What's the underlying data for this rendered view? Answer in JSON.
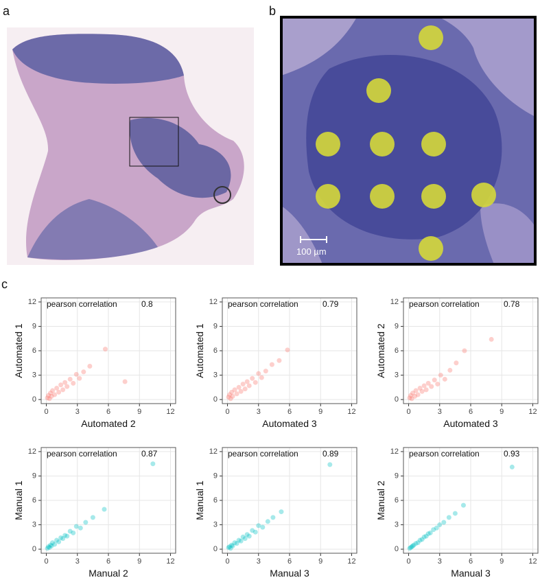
{
  "panel_labels": {
    "a": "a",
    "b": "b",
    "c": "c"
  },
  "scale_bar": "100 µm",
  "chart_data": [
    {
      "type": "scatter",
      "annotation": "pearson correlation",
      "correlation": 0.8,
      "xlabel": "Automated 2",
      "ylabel": "Automated 1",
      "color": "#f8766d",
      "x": [
        0.1,
        0.2,
        0.3,
        0.4,
        0.5,
        0.6,
        0.8,
        1.0,
        1.2,
        1.4,
        1.6,
        1.8,
        2.0,
        2.3,
        2.6,
        2.9,
        3.2,
        3.6,
        4.2,
        5.7,
        7.6
      ],
      "y": [
        0.2,
        0.5,
        0.1,
        0.8,
        0.4,
        1.1,
        0.6,
        1.4,
        0.9,
        1.8,
        1.2,
        2.1,
        1.6,
        2.5,
        2.0,
        3.1,
        2.6,
        3.4,
        4.1,
        6.2,
        2.2
      ],
      "xlim": [
        -0.5,
        12.5
      ],
      "ylim": [
        -0.5,
        12.5
      ],
      "xticks": [
        0,
        3,
        6,
        9,
        12
      ],
      "yticks": [
        0,
        3,
        6,
        9,
        12
      ],
      "grid": true
    },
    {
      "type": "scatter",
      "annotation": "pearson correlation",
      "correlation": 0.79,
      "xlabel": "Automated 3",
      "ylabel": "Automated 1",
      "color": "#f8766d",
      "x": [
        0.1,
        0.2,
        0.3,
        0.4,
        0.5,
        0.7,
        0.9,
        1.1,
        1.3,
        1.5,
        1.7,
        1.9,
        2.1,
        2.4,
        2.7,
        3.0,
        3.3,
        3.7,
        4.3,
        5.0,
        5.8
      ],
      "y": [
        0.3,
        0.6,
        0.1,
        0.9,
        0.4,
        1.2,
        0.7,
        1.5,
        1.0,
        1.9,
        1.3,
        2.2,
        1.7,
        2.6,
        2.1,
        3.2,
        2.7,
        3.5,
        4.3,
        4.8,
        6.1
      ],
      "xlim": [
        -0.5,
        12.5
      ],
      "ylim": [
        -0.5,
        12.5
      ],
      "xticks": [
        0,
        3,
        6,
        9,
        12
      ],
      "yticks": [
        0,
        3,
        6,
        9,
        12
      ],
      "grid": true
    },
    {
      "type": "scatter",
      "annotation": "pearson correlation",
      "correlation": 0.78,
      "xlabel": "Automated 3",
      "ylabel": "Automated 2",
      "color": "#f8766d",
      "x": [
        0.1,
        0.2,
        0.3,
        0.4,
        0.6,
        0.7,
        0.9,
        1.1,
        1.3,
        1.5,
        1.7,
        1.9,
        2.2,
        2.5,
        2.8,
        3.1,
        3.5,
        4.0,
        4.6,
        5.4,
        8.0
      ],
      "y": [
        0.2,
        0.5,
        0.1,
        0.8,
        0.4,
        1.1,
        0.6,
        1.4,
        1.0,
        1.7,
        1.2,
        2.0,
        1.6,
        2.4,
        1.9,
        3.0,
        2.5,
        3.6,
        4.5,
        6.0,
        7.4
      ],
      "xlim": [
        -0.5,
        12.5
      ],
      "ylim": [
        -0.5,
        12.5
      ],
      "xticks": [
        0,
        3,
        6,
        9,
        12
      ],
      "yticks": [
        0,
        3,
        6,
        9,
        12
      ],
      "grid": true
    },
    {
      "type": "scatter",
      "annotation": "pearson correlation",
      "correlation": 0.87,
      "xlabel": "Manual 2",
      "ylabel": "Manual 1",
      "color": "#00bfc4",
      "x": [
        0.1,
        0.2,
        0.3,
        0.4,
        0.5,
        0.6,
        0.8,
        1.0,
        1.2,
        1.4,
        1.6,
        1.8,
        2.0,
        2.3,
        2.6,
        2.9,
        3.3,
        3.8,
        4.5,
        5.6,
        10.3
      ],
      "y": [
        0.1,
        0.3,
        0.2,
        0.5,
        0.4,
        0.8,
        0.6,
        1.1,
        0.9,
        1.4,
        1.3,
        1.7,
        1.6,
        2.2,
        2.0,
        2.8,
        2.6,
        3.3,
        3.9,
        4.9,
        10.5
      ],
      "xlim": [
        -0.5,
        12.5
      ],
      "ylim": [
        -0.5,
        12.5
      ],
      "xticks": [
        0,
        3,
        6,
        9,
        12
      ],
      "yticks": [
        0,
        3,
        6,
        9,
        12
      ],
      "grid": true
    },
    {
      "type": "scatter",
      "annotation": "pearson correlation",
      "correlation": 0.89,
      "xlabel": "Manual 3",
      "ylabel": "Manual 1",
      "color": "#00bfc4",
      "x": [
        0.1,
        0.2,
        0.3,
        0.4,
        0.5,
        0.7,
        0.9,
        1.1,
        1.3,
        1.5,
        1.7,
        1.9,
        2.1,
        2.4,
        2.7,
        3.0,
        3.4,
        3.9,
        4.4,
        5.2,
        9.9
      ],
      "y": [
        0.2,
        0.3,
        0.1,
        0.5,
        0.4,
        0.8,
        0.7,
        1.1,
        1.0,
        1.5,
        1.3,
        1.8,
        1.6,
        2.3,
        2.1,
        2.9,
        2.7,
        3.4,
        3.9,
        4.6,
        10.4
      ],
      "xlim": [
        -0.5,
        12.5
      ],
      "ylim": [
        -0.5,
        12.5
      ],
      "xticks": [
        0,
        3,
        6,
        9,
        12
      ],
      "yticks": [
        0,
        3,
        6,
        9,
        12
      ],
      "grid": true
    },
    {
      "type": "scatter",
      "annotation": "pearson correlation",
      "correlation": 0.93,
      "xlabel": "Manual 3",
      "ylabel": "Manual 2",
      "color": "#00bfc4",
      "x": [
        0.1,
        0.2,
        0.3,
        0.4,
        0.5,
        0.7,
        0.9,
        1.1,
        1.3,
        1.5,
        1.7,
        1.9,
        2.1,
        2.4,
        2.7,
        3.0,
        3.4,
        3.9,
        4.5,
        5.3,
        10.0
      ],
      "y": [
        0.1,
        0.2,
        0.3,
        0.4,
        0.5,
        0.7,
        0.8,
        1.1,
        1.2,
        1.5,
        1.6,
        1.9,
        2.0,
        2.4,
        2.6,
        3.0,
        3.3,
        3.9,
        4.4,
        5.4,
        10.1
      ],
      "xlim": [
        -0.5,
        12.5
      ],
      "ylim": [
        -0.5,
        12.5
      ],
      "xticks": [
        0,
        3,
        6,
        9,
        12
      ],
      "yticks": [
        0,
        3,
        6,
        9,
        12
      ],
      "grid": true
    }
  ]
}
